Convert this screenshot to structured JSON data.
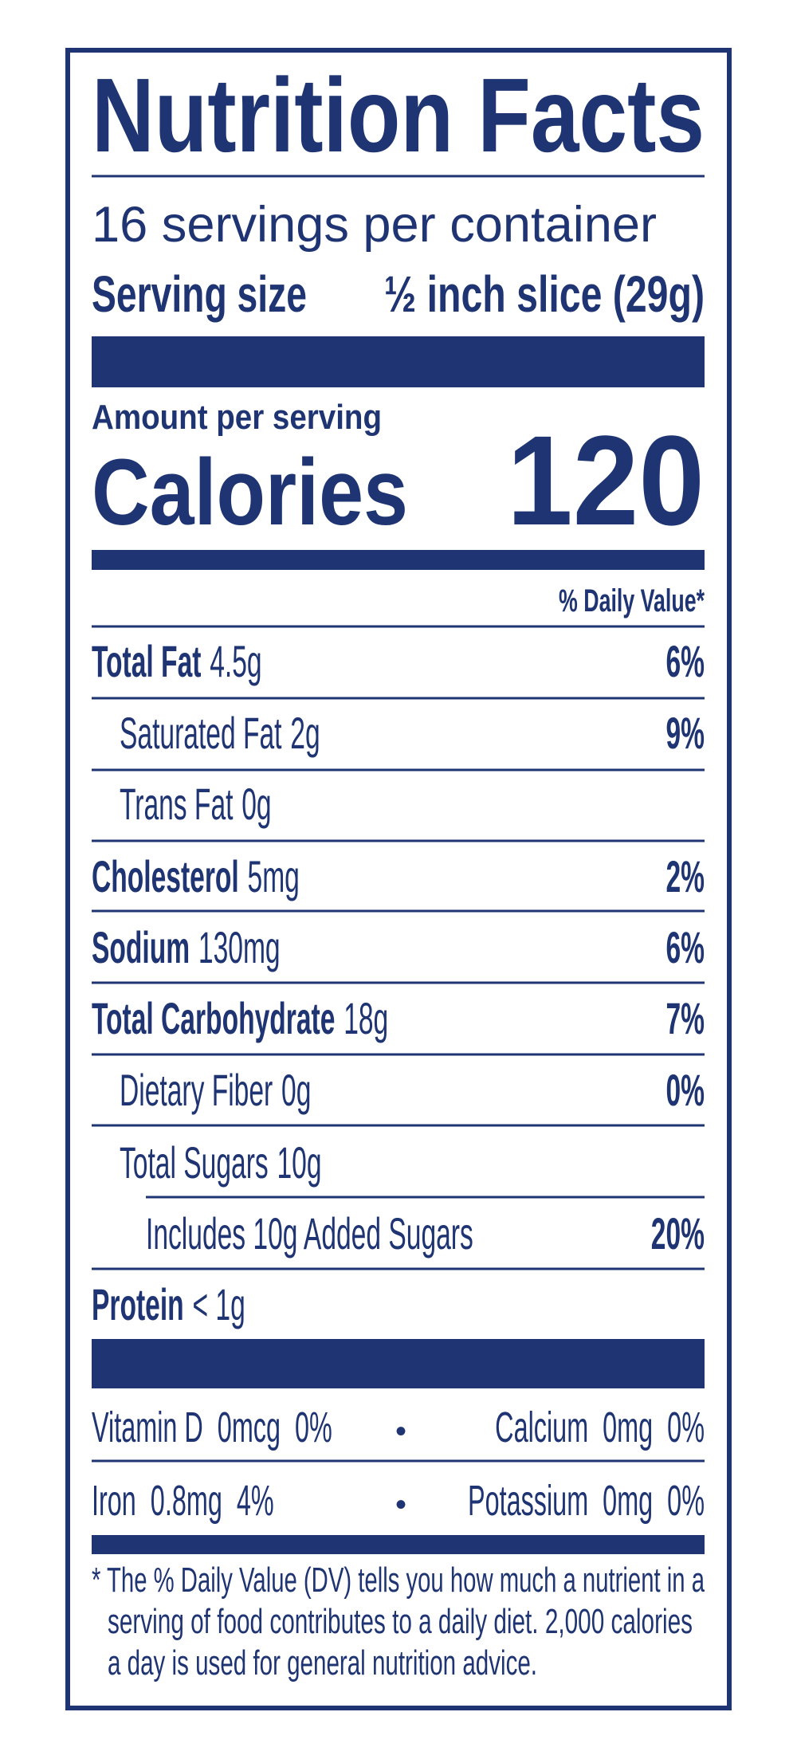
{
  "header": {
    "title": "Nutrition Facts",
    "servings": "16 servings per container",
    "serving_size_label": "Serving size",
    "serving_size_value": "½ inch slice (29g)"
  },
  "calories": {
    "amount_label": "Amount per serving",
    "label": "Calories",
    "value": 120
  },
  "daily_value_header": "% Daily Value*",
  "nutrients": [
    {
      "name": "Total Fat",
      "amount": "4.5g",
      "dv": "6%"
    },
    {
      "name": "Saturated Fat",
      "amount": "2g",
      "dv": "9%"
    },
    {
      "name": "Trans Fat",
      "amount": "0g"
    },
    {
      "name": "Cholesterol",
      "amount": "5mg",
      "dv": "2%"
    },
    {
      "name": "Sodium",
      "amount": "130mg",
      "dv": "6%"
    },
    {
      "name": "Total Carbohydrate",
      "amount": "18g",
      "dv": "7%"
    },
    {
      "name": "Dietary Fiber",
      "amount": "0g",
      "dv": "0%"
    },
    {
      "name": "Total Sugars",
      "amount": "10g"
    },
    {
      "name": "Includes 10g Added Sugars",
      "dv": "20%"
    },
    {
      "name": "Protein",
      "amount": "< 1g"
    }
  ],
  "vitamins": [
    {
      "left": "Vitamin D  0mcg  0%",
      "right": "Calcium  0mg  0%"
    },
    {
      "left": "Iron  0.8mg  4%",
      "right": "Potassium  0mg  0%"
    }
  ],
  "footnote": [
    "* The % Daily Value (DV) tells you how much a nutrient in a",
    "serving of food contributes to a daily diet. 2,000 calories",
    "a day is used for general nutrition advice."
  ]
}
